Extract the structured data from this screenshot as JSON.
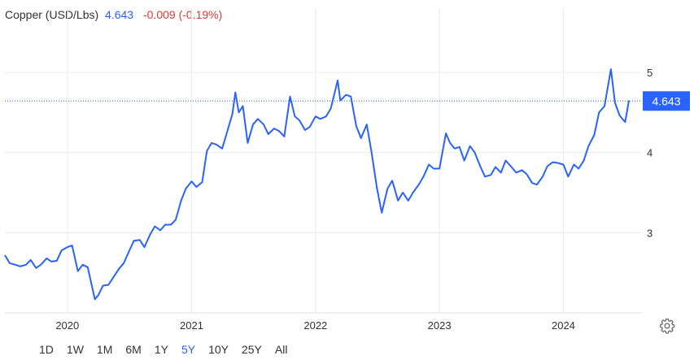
{
  "header": {
    "title": "Copper (USD/Lbs)",
    "price": "4.643",
    "change": "-0.009 (-0.19%)"
  },
  "colors": {
    "line": "#2962ff",
    "down": "#e53935",
    "price_tag_bg": "#2962ff"
  },
  "range_buttons": [
    {
      "label": "1D"
    },
    {
      "label": "1W"
    },
    {
      "label": "1M"
    },
    {
      "label": "6M"
    },
    {
      "label": "1Y"
    },
    {
      "label": "5Y",
      "active": true
    },
    {
      "label": "10Y"
    },
    {
      "label": "25Y"
    },
    {
      "label": "All"
    }
  ],
  "settings_icon": "gear-icon",
  "chart_data": {
    "type": "line",
    "title": "",
    "xlabel": "",
    "ylabel": "",
    "ylim": [
      2.0,
      5.3
    ],
    "grid": true,
    "x_ticks": [
      {
        "label": "2020",
        "date": "2020-01-01"
      },
      {
        "label": "2021",
        "date": "2021-01-01"
      },
      {
        "label": "2022",
        "date": "2022-01-01"
      },
      {
        "label": "2023",
        "date": "2023-01-01"
      },
      {
        "label": "2024",
        "date": "2024-01-01"
      }
    ],
    "y_ticks": [
      3,
      4,
      5
    ],
    "last_price_label": "4.643",
    "last_price": 4.643,
    "series": [
      {
        "points": [
          [
            "2019-07-01",
            2.72
          ],
          [
            "2019-07-15",
            2.62
          ],
          [
            "2019-08-01",
            2.6
          ],
          [
            "2019-08-15",
            2.58
          ],
          [
            "2019-09-01",
            2.6
          ],
          [
            "2019-09-15",
            2.66
          ],
          [
            "2019-10-01",
            2.56
          ],
          [
            "2019-10-15",
            2.6
          ],
          [
            "2019-11-01",
            2.68
          ],
          [
            "2019-11-15",
            2.64
          ],
          [
            "2019-12-01",
            2.65
          ],
          [
            "2019-12-15",
            2.78
          ],
          [
            "2020-01-01",
            2.82
          ],
          [
            "2020-01-15",
            2.84
          ],
          [
            "2020-02-01",
            2.52
          ],
          [
            "2020-02-15",
            2.6
          ],
          [
            "2020-03-01",
            2.57
          ],
          [
            "2020-03-15",
            2.3
          ],
          [
            "2020-03-22",
            2.17
          ],
          [
            "2020-04-01",
            2.22
          ],
          [
            "2020-04-15",
            2.34
          ],
          [
            "2020-05-01",
            2.35
          ],
          [
            "2020-05-15",
            2.44
          ],
          [
            "2020-06-01",
            2.55
          ],
          [
            "2020-06-15",
            2.62
          ],
          [
            "2020-07-01",
            2.77
          ],
          [
            "2020-07-15",
            2.9
          ],
          [
            "2020-08-01",
            2.91
          ],
          [
            "2020-08-15",
            2.82
          ],
          [
            "2020-09-01",
            2.98
          ],
          [
            "2020-09-15",
            3.08
          ],
          [
            "2020-10-01",
            3.03
          ],
          [
            "2020-10-15",
            3.1
          ],
          [
            "2020-11-01",
            3.1
          ],
          [
            "2020-11-15",
            3.16
          ],
          [
            "2020-12-01",
            3.4
          ],
          [
            "2020-12-15",
            3.55
          ],
          [
            "2021-01-01",
            3.64
          ],
          [
            "2021-01-15",
            3.57
          ],
          [
            "2021-02-01",
            3.63
          ],
          [
            "2021-02-15",
            4.02
          ],
          [
            "2021-03-01",
            4.12
          ],
          [
            "2021-03-15",
            4.1
          ],
          [
            "2021-04-01",
            4.05
          ],
          [
            "2021-04-15",
            4.25
          ],
          [
            "2021-05-01",
            4.48
          ],
          [
            "2021-05-10",
            4.75
          ],
          [
            "2021-05-20",
            4.5
          ],
          [
            "2021-06-01",
            4.58
          ],
          [
            "2021-06-15",
            4.12
          ],
          [
            "2021-07-01",
            4.35
          ],
          [
            "2021-07-15",
            4.42
          ],
          [
            "2021-08-01",
            4.35
          ],
          [
            "2021-08-15",
            4.23
          ],
          [
            "2021-09-01",
            4.3
          ],
          [
            "2021-09-15",
            4.27
          ],
          [
            "2021-10-01",
            4.2
          ],
          [
            "2021-10-18",
            4.7
          ],
          [
            "2021-11-01",
            4.45
          ],
          [
            "2021-11-15",
            4.4
          ],
          [
            "2021-12-01",
            4.28
          ],
          [
            "2021-12-15",
            4.32
          ],
          [
            "2022-01-01",
            4.45
          ],
          [
            "2022-01-15",
            4.42
          ],
          [
            "2022-02-01",
            4.45
          ],
          [
            "2022-02-15",
            4.55
          ],
          [
            "2022-03-07",
            4.9
          ],
          [
            "2022-03-15",
            4.65
          ],
          [
            "2022-04-01",
            4.72
          ],
          [
            "2022-04-15",
            4.7
          ],
          [
            "2022-05-01",
            4.33
          ],
          [
            "2022-05-15",
            4.18
          ],
          [
            "2022-06-01",
            4.35
          ],
          [
            "2022-06-15",
            4.0
          ],
          [
            "2022-07-01",
            3.55
          ],
          [
            "2022-07-15",
            3.25
          ],
          [
            "2022-08-01",
            3.55
          ],
          [
            "2022-08-15",
            3.65
          ],
          [
            "2022-09-01",
            3.4
          ],
          [
            "2022-09-15",
            3.5
          ],
          [
            "2022-10-01",
            3.4
          ],
          [
            "2022-10-15",
            3.5
          ],
          [
            "2022-11-01",
            3.6
          ],
          [
            "2022-11-15",
            3.7
          ],
          [
            "2022-12-01",
            3.85
          ],
          [
            "2022-12-15",
            3.8
          ],
          [
            "2023-01-01",
            3.8
          ],
          [
            "2023-01-20",
            4.24
          ],
          [
            "2023-02-01",
            4.12
          ],
          [
            "2023-02-15",
            4.05
          ],
          [
            "2023-03-01",
            4.07
          ],
          [
            "2023-03-15",
            3.9
          ],
          [
            "2023-04-01",
            4.08
          ],
          [
            "2023-04-15",
            4.0
          ],
          [
            "2023-05-01",
            3.83
          ],
          [
            "2023-05-15",
            3.7
          ],
          [
            "2023-06-01",
            3.72
          ],
          [
            "2023-06-15",
            3.82
          ],
          [
            "2023-07-01",
            3.75
          ],
          [
            "2023-07-15",
            3.9
          ],
          [
            "2023-08-01",
            3.82
          ],
          [
            "2023-08-15",
            3.75
          ],
          [
            "2023-09-01",
            3.78
          ],
          [
            "2023-09-15",
            3.73
          ],
          [
            "2023-10-01",
            3.62
          ],
          [
            "2023-10-15",
            3.6
          ],
          [
            "2023-11-01",
            3.7
          ],
          [
            "2023-11-15",
            3.83
          ],
          [
            "2023-12-01",
            3.88
          ],
          [
            "2023-12-15",
            3.87
          ],
          [
            "2024-01-01",
            3.85
          ],
          [
            "2024-01-15",
            3.7
          ],
          [
            "2024-02-01",
            3.85
          ],
          [
            "2024-02-15",
            3.8
          ],
          [
            "2024-03-01",
            3.9
          ],
          [
            "2024-03-15",
            4.08
          ],
          [
            "2024-04-01",
            4.22
          ],
          [
            "2024-04-15",
            4.5
          ],
          [
            "2024-05-01",
            4.58
          ],
          [
            "2024-05-20",
            5.04
          ],
          [
            "2024-06-01",
            4.62
          ],
          [
            "2024-06-15",
            4.46
          ],
          [
            "2024-07-01",
            4.38
          ],
          [
            "2024-07-12",
            4.65
          ]
        ]
      }
    ]
  }
}
